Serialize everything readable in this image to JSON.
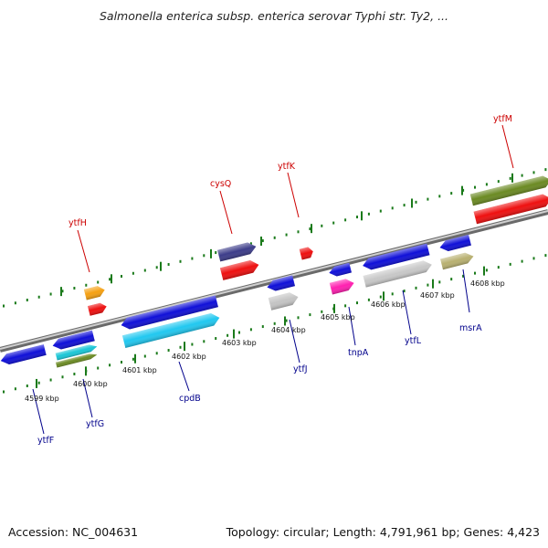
{
  "title": "Salmonella enterica subsp. enterica serovar Typhi str. Ty2, ...",
  "footer": {
    "accession": "Accession: NC_004631",
    "stats": "Topology: circular; Length: 4,791,961 bp; Genes: 4,423"
  },
  "colors": {
    "label_top": "#cc0000",
    "label_bottom": "#00008b",
    "backbone": "#888888",
    "tick": "#1a7a1a"
  },
  "scale": {
    "ticks": [
      "4599 kbp",
      "4600 kbp",
      "4601 kbp",
      "4602 kbp",
      "4603 kbp",
      "4604 kbp",
      "4605 kbp",
      "4606 kbp",
      "4607 kbp",
      "4608 kbp"
    ]
  },
  "genes_top": [
    {
      "name": "ytfH"
    },
    {
      "name": "cysQ"
    },
    {
      "name": "ytfK"
    },
    {
      "name": "ytfM"
    }
  ],
  "genes_bottom": [
    {
      "name": "ytfF"
    },
    {
      "name": "ytfG"
    },
    {
      "name": "cpdB"
    },
    {
      "name": "ytfJ"
    },
    {
      "name": "tnpA"
    },
    {
      "name": "ytfL"
    },
    {
      "name": "msrA"
    }
  ]
}
